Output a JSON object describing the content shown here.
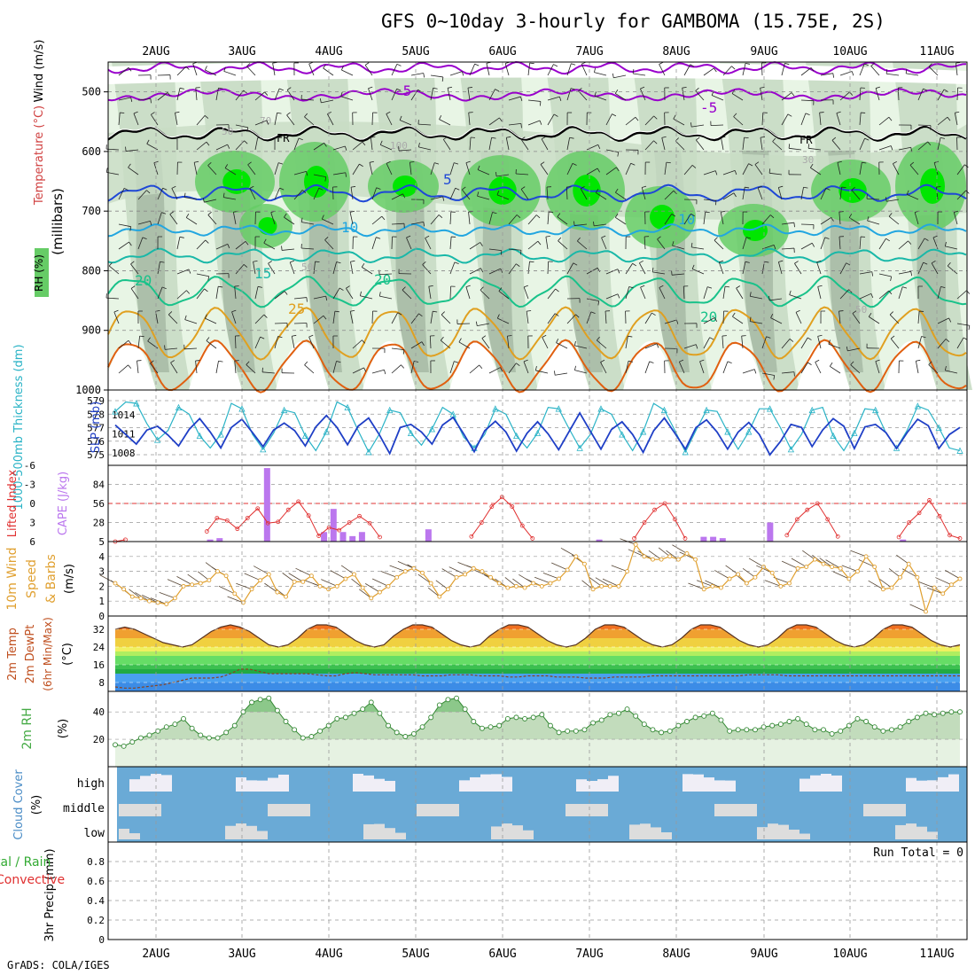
{
  "title": "GFS 0~10day 3-hourly for GAMBOMA (15.75E, 2S)",
  "credit": "GrADS: COLA/IGES",
  "dates": [
    "2AUG",
    "3AUG",
    "4AUG",
    "5AUG",
    "6AUG",
    "7AUG",
    "8AUG",
    "9AUG",
    "10AUG",
    "11AUG"
  ],
  "colors": {
    "rh_light": "#e8f5e5",
    "rh_mid": "#c8dcc4",
    "rh_gray": "#a9bba6",
    "rh_green": "#66cc66",
    "rh_bright": "#00e600",
    "temp_purple": "#9900cc",
    "temp_blue": "#1f48d6",
    "temp_cyan": "#22a6e0",
    "temp_teal": "#19b8a8",
    "temp_green": "#19c28a",
    "temp_orange": "#e0a020",
    "temp_red": "#e06010",
    "slp": "#1f3fc6",
    "thickness": "#2ab3c6",
    "lifted": "#e03030",
    "cape": "#bb77ee",
    "wind": "#e0a030",
    "rh2m": "#44aa44",
    "cloud": "#6aaad6",
    "cloud_light": "#ddd"
  },
  "chart_data": [
    {
      "panel": "upper-air",
      "type": "heatmap",
      "ylabel": "(millibars)",
      "legend": [
        "RH (%)",
        "Temperature (°C)",
        "Wind (m/s)"
      ],
      "yticks": [
        500,
        600,
        700,
        800,
        900,
        1000
      ],
      "ylim": [
        1000,
        450
      ],
      "temperature_levels": [
        "-5",
        "FR",
        "5",
        "10",
        "15",
        "20",
        "25"
      ],
      "rh_labels": [
        "70",
        "50",
        "100",
        "30"
      ]
    },
    {
      "panel": "thickness-slp",
      "type": "line",
      "ylabel_left": "1000-500mb Thickness (dm)",
      "ylabel_right": "SLP (mb)",
      "yticks_left": [
        575,
        576,
        577,
        578,
        579
      ],
      "yticks_right": [
        1008,
        1011,
        1014
      ],
      "series": [
        {
          "name": "SLP (mb)",
          "values": [
            1012.4,
            1010.9,
            1009.4,
            1011.6,
            1012.2,
            1010.8,
            1009.1,
            1011.7,
            1013.4,
            1011.3,
            1008.8,
            1012.0,
            1013.3,
            1011.2,
            1009.0,
            1011.6,
            1012.7,
            1011.5,
            1009.1,
            1012.1,
            1013.9,
            1012.0,
            1009.3,
            1012.2,
            1013.5,
            1010.9,
            1007.9,
            1012.0,
            1012.5,
            1011.3,
            1009.4,
            1012.4,
            1013.6,
            1011.0,
            1008.2,
            1011.5,
            1013.0,
            1011.3,
            1008.3,
            1011.1,
            1012.9,
            1011.0,
            1008.5,
            1011.4,
            1014.3,
            1011.4,
            1008.6,
            1011.7,
            1012.9,
            1010.9,
            1008.1,
            1011.5,
            1013.5,
            1011.1,
            1008.6,
            1012.0,
            1013.2,
            1011.3,
            1008.6,
            1011.3,
            1012.8,
            1010.9,
            1007.7,
            1009.8,
            1012.5,
            1012.0,
            1009.0,
            1011.6,
            1013.4,
            1012.2,
            1008.7,
            1012.1,
            1012.5,
            1011.2,
            1008.7,
            1011.2,
            1013.3,
            1012.3,
            1008.7,
            1010.9,
            1012.0
          ]
        },
        {
          "name": "Thickness (dm)",
          "values": [
            578.2,
            578.9,
            578.8,
            577.3,
            576.1,
            576.8,
            578.5,
            578.0,
            576.4,
            575.5,
            576.5,
            578.8,
            578.4,
            576.5,
            575.4,
            576.6,
            578.3,
            578.1,
            576.4,
            575.3,
            576.7,
            578.9,
            578.5,
            576.8,
            575.2,
            576.5,
            578.3,
            578.1,
            576.6,
            575.7,
            576.9,
            578.5,
            578.0,
            576.3,
            575.5,
            576.5,
            578.4,
            578.0,
            576.4,
            575.5,
            576.6,
            578.5,
            578.4,
            576.9,
            575.5,
            576.5,
            578.4,
            578.0,
            576.5,
            575.3,
            576.7,
            578.8,
            578.3,
            576.8,
            575.2,
            576.8,
            578.3,
            578.2,
            576.7,
            575.4,
            576.7,
            578.4,
            578.4,
            577.0,
            575.4,
            576.5,
            578.3,
            578.5,
            576.4,
            575.3,
            576.6,
            578.4,
            578.3,
            576.6,
            575.5,
            576.8,
            578.6,
            578.3,
            577.0,
            575.5,
            575.3
          ]
        }
      ]
    },
    {
      "panel": "cape-li",
      "type": "bar",
      "ylabel_left": "Lifted Index",
      "ylabel_right": "CAPE (J/kg)",
      "yticks_left": [
        -6,
        -3,
        0,
        3,
        6
      ],
      "yticks_right": [
        28,
        56,
        84
      ],
      "ylim_cape": [
        0,
        112
      ],
      "ylim_li": [
        6,
        -6
      ],
      "series": [
        {
          "name": "Lifted Index",
          "values": [
            6,
            5.7,
            null,
            null,
            null,
            null,
            null,
            null,
            null,
            4.4,
            2.3,
            2.7,
            4.0,
            2.3,
            0.8,
            3.1,
            2.9,
            1.0,
            -0.3,
            1.9,
            5.1,
            3.8,
            4.2,
            3.0,
            2.0,
            3.1,
            5.3,
            null,
            null,
            null,
            null,
            null,
            null,
            null,
            null,
            5.2,
            3.0,
            0.5,
            -1.0,
            0.5,
            3.5,
            5.5,
            null,
            null,
            null,
            null,
            null,
            null,
            null,
            null,
            null,
            5.5,
            3.0,
            1.0,
            0.0,
            2.5,
            5.5,
            null,
            null,
            null,
            null,
            null,
            null,
            null,
            null,
            null,
            5.0,
            2.5,
            1.0,
            0.0,
            2.5,
            5.2,
            null,
            null,
            null,
            null,
            null,
            5.3,
            3.0,
            1.5,
            -0.5,
            2.0,
            5.0,
            5.5
          ]
        },
        {
          "name": "CAPE (J/kg)",
          "values": [
            0,
            0,
            0,
            0,
            0,
            0,
            0,
            0,
            0,
            0,
            3,
            5,
            0,
            0,
            0,
            0,
            108,
            0,
            0,
            0,
            0,
            0,
            14,
            48,
            14,
            8,
            14,
            0,
            0,
            0,
            0,
            0,
            0,
            18,
            0,
            0,
            0,
            0,
            0,
            0,
            0,
            0,
            0,
            0,
            0,
            0,
            0,
            0,
            0,
            0,
            0,
            3,
            0,
            0,
            0,
            0,
            0,
            0,
            0,
            0,
            0,
            0,
            7,
            7,
            5,
            0,
            0,
            0,
            0,
            28,
            0,
            0,
            0,
            0,
            0,
            0,
            0,
            0,
            0,
            0,
            0,
            0,
            0,
            3,
            0,
            0,
            0,
            0,
            0,
            0
          ]
        }
      ]
    },
    {
      "panel": "wind10m",
      "type": "line",
      "ylabel": "10m Wind Speed & Barbs (m/s)",
      "yticks": [
        0,
        1,
        2,
        3,
        4,
        5
      ],
      "ylim": [
        0,
        5
      ],
      "series": [
        {
          "name": "10m Wind Speed (m/s)",
          "values": [
            2.2,
            1.8,
            1.3,
            1.2,
            1.0,
            0.9,
            0.8,
            1.2,
            2.0,
            2.1,
            2.2,
            2.4,
            3.0,
            2.7,
            1.5,
            0.9,
            1.8,
            2.4,
            2.8,
            1.6,
            1.3,
            2.3,
            2.3,
            2.7,
            2.0,
            1.8,
            2.0,
            2.5,
            2.8,
            1.9,
            1.2,
            1.6,
            2.0,
            2.6,
            3.0,
            3.2,
            2.9,
            2.2,
            1.3,
            1.8,
            2.6,
            2.8,
            3.2,
            3.0,
            2.6,
            2.2,
            1.9,
            2.0,
            1.9,
            2.2,
            2.0,
            2.2,
            2.5,
            3.1,
            4.0,
            3.5,
            1.8,
            2.0,
            2.0,
            2.0,
            3.0,
            4.8,
            4.0,
            3.8,
            3.8,
            4.0,
            3.8,
            4.2,
            3.8,
            1.8,
            2.0,
            1.9,
            2.5,
            2.8,
            2.2,
            2.6,
            3.3,
            2.9,
            2.0,
            2.2,
            3.2,
            3.3,
            3.8,
            3.5,
            3.3,
            3.2,
            2.5,
            3.0,
            4.0,
            3.3,
            1.8,
            1.9,
            2.6,
            3.5,
            2.6,
            0.3,
            1.9,
            1.5,
            2.1,
            2.5
          ]
        }
      ]
    },
    {
      "panel": "temp2m",
      "type": "area",
      "ylabel": "2m Temp 2m DewPt (6hr Min/Max) (°C)",
      "yticks": [
        8,
        16,
        24,
        32
      ],
      "ylim": [
        4,
        38
      ],
      "series": [
        {
          "name": "2m Temp (°C)",
          "values": [
            32,
            33,
            32,
            30,
            28,
            26,
            25,
            24,
            25,
            28,
            31,
            33,
            34,
            33,
            31,
            28,
            25,
            24,
            25,
            28,
            32,
            34,
            34,
            33,
            30,
            27,
            25,
            24,
            25,
            29,
            32,
            34,
            34,
            33,
            30,
            27,
            25,
            24,
            25,
            29,
            32,
            34,
            34,
            33,
            30,
            27,
            25,
            24,
            25,
            28,
            32,
            34,
            34,
            33,
            30,
            27,
            25,
            24,
            25,
            28,
            32,
            34,
            34,
            33,
            30,
            27,
            25,
            24,
            25,
            28,
            32,
            34,
            34,
            33,
            30,
            27,
            25,
            24,
            25,
            28,
            32,
            34,
            34,
            33,
            30,
            27,
            25,
            24,
            25
          ]
        },
        {
          "name": "2m DewPt (°C)",
          "values": [
            6,
            5.5,
            5.5,
            6,
            6.5,
            7,
            8,
            9,
            10,
            10,
            10,
            10.5,
            12,
            14,
            14,
            13,
            12,
            12,
            12,
            12,
            12,
            11.5,
            11,
            11,
            12,
            12.5,
            12,
            11.5,
            11.5,
            11.5,
            11.5,
            11.5,
            11,
            11,
            11,
            11.5,
            11.5,
            11.5,
            11,
            11,
            11,
            10.5,
            10.5,
            11,
            11,
            11,
            10.5,
            10.5,
            10.5,
            10,
            10,
            10,
            10.5,
            10.5,
            10.5,
            10.5,
            11,
            11,
            11,
            11,
            11,
            11,
            11,
            11,
            11,
            11,
            11.5,
            11.5,
            11.5,
            11.5,
            11,
            11,
            11,
            11,
            11,
            11,
            11,
            11,
            11,
            11,
            11,
            11,
            11,
            11,
            11,
            11,
            11,
            11,
            11
          ]
        }
      ]
    },
    {
      "panel": "rh2m",
      "type": "area",
      "ylabel": "2m RH (%)",
      "yticks": [
        20,
        40
      ],
      "ylim": [
        0,
        55
      ],
      "series": [
        {
          "name": "2m RH (%)",
          "values": [
            16,
            15,
            18,
            21,
            23,
            26,
            29,
            31,
            35,
            28,
            23,
            21,
            21,
            25,
            30,
            40,
            47,
            49,
            50,
            41,
            33,
            27,
            21,
            22,
            26,
            30,
            35,
            36,
            39,
            42,
            47,
            39,
            30,
            25,
            22,
            24,
            29,
            36,
            45,
            49,
            50,
            42,
            33,
            28,
            29,
            30,
            35,
            36,
            35,
            36,
            38,
            30,
            25,
            26,
            26,
            27,
            32,
            34,
            38,
            39,
            42,
            37,
            31,
            27,
            25,
            26,
            30,
            33,
            36,
            37,
            39,
            34,
            26,
            27,
            27,
            27,
            29,
            30,
            31,
            33,
            35,
            31,
            27,
            27,
            24,
            26,
            30,
            35,
            33,
            29,
            26,
            27,
            29,
            33,
            36,
            39,
            38,
            39,
            40,
            40
          ]
        }
      ]
    },
    {
      "panel": "cloud",
      "type": "heatmap",
      "ylabel": "Cloud Cover (%)",
      "yticks": [
        "high",
        "middle",
        "low"
      ]
    },
    {
      "panel": "precip",
      "type": "bar",
      "ylabel": "3hr Precip (mm)",
      "legend_partial": [
        "tal / Rain",
        "Convective"
      ],
      "annotation": "Run Total = 0",
      "yticks": [
        0,
        0.2,
        0.4,
        0.6,
        0.8
      ],
      "ylim": [
        0,
        1
      ],
      "values": []
    }
  ]
}
